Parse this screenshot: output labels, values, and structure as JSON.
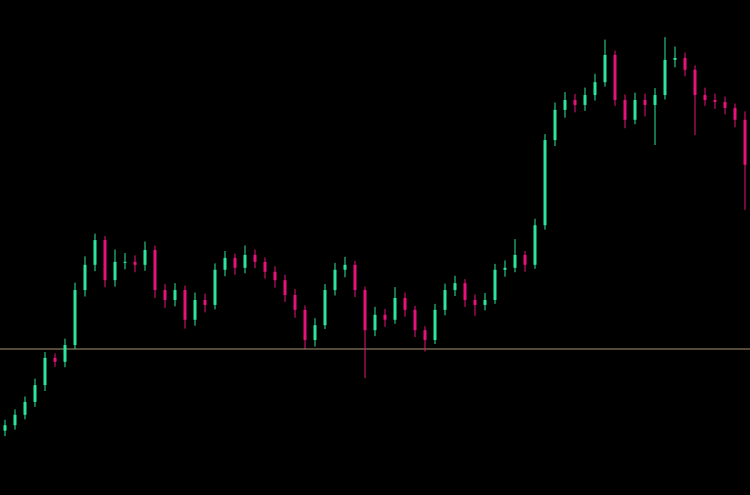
{
  "chart_data": {
    "type": "candlestick",
    "up_color": "#2ee59d",
    "down_color": "#e8127c",
    "background": "#000000",
    "ylim": [
      0,
      100
    ],
    "open": [
      13.0,
      14.1,
      16.2,
      18.8,
      22.2,
      27.7,
      26.9,
      30.3,
      41.4,
      46.5,
      51.5,
      43.4,
      47.1,
      47.1,
      46.5,
      49.5,
      41.4,
      39.4,
      41.4,
      35.4,
      39.4,
      38.4,
      45.5,
      47.9,
      45.9,
      48.5,
      47.1,
      45.1,
      43.4,
      40.4,
      37.4,
      31.3,
      34.3,
      41.4,
      45.5,
      46.5,
      41.4,
      33.3,
      36.4,
      35.4,
      39.8,
      37.4,
      33.3,
      31.3,
      37.4,
      41.4,
      42.8,
      39.4,
      38.4,
      39.4,
      45.5,
      45.9,
      48.5,
      46.5,
      54.5,
      71.7,
      77.8,
      79.8,
      78.8,
      80.8,
      83.4,
      88.9,
      79.8,
      75.8,
      79.8,
      78.8,
      80.8,
      87.9,
      88.3,
      85.9,
      80.8,
      79.8,
      79.4,
      78.2,
      75.8
    ],
    "high": [
      15.2,
      17.3,
      19.9,
      23.5,
      28.9,
      28.6,
      31.6,
      42.9,
      48.2,
      52.8,
      52.3,
      49.6,
      48.9,
      48.4,
      51.2,
      50.4,
      42.6,
      42.8,
      42.3,
      40.9,
      40.7,
      46.8,
      49.3,
      48.8,
      50.4,
      49.6,
      48.0,
      46.2,
      44.5,
      41.6,
      38.3,
      35.7,
      42.6,
      46.9,
      48.1,
      47.3,
      42.1,
      38.0,
      37.6,
      42.0,
      40.9,
      38.2,
      34.1,
      38.6,
      42.7,
      44.3,
      43.6,
      40.5,
      40.8,
      46.7,
      47.4,
      51.7,
      49.3,
      55.8,
      72.9,
      79.3,
      81.4,
      81.0,
      82.3,
      85.1,
      92.0,
      89.8,
      80.9,
      81.3,
      81.1,
      82.2,
      92.5,
      90.6,
      89.4,
      86.8,
      82.3,
      81.1,
      80.5,
      79.1,
      77.5
    ],
    "low": [
      11.9,
      13.2,
      15.3,
      17.8,
      21.0,
      25.9,
      25.8,
      29.4,
      40.1,
      45.2,
      42.0,
      42.1,
      45.6,
      45.0,
      45.3,
      39.8,
      37.8,
      38.1,
      33.6,
      34.2,
      36.9,
      37.5,
      44.2,
      44.5,
      44.8,
      45.8,
      43.7,
      41.9,
      39.0,
      35.8,
      29.6,
      30.0,
      33.5,
      40.3,
      44.0,
      40.0,
      23.6,
      32.1,
      34.0,
      34.6,
      36.0,
      31.9,
      29.0,
      30.5,
      36.3,
      40.2,
      38.0,
      36.2,
      37.3,
      38.6,
      44.1,
      45.0,
      45.1,
      45.7,
      53.6,
      70.5,
      76.2,
      77.3,
      77.6,
      79.7,
      82.5,
      78.6,
      74.1,
      74.9,
      76.5,
      70.7,
      79.9,
      86.4,
      84.6,
      72.7,
      78.6,
      78.0,
      76.9,
      74.3,
      57.6
    ],
    "close": [
      14.1,
      16.2,
      18.8,
      22.2,
      27.7,
      26.9,
      30.3,
      41.4,
      46.5,
      51.5,
      43.4,
      47.1,
      47.1,
      46.5,
      49.5,
      41.4,
      39.4,
      41.4,
      35.4,
      39.4,
      38.4,
      45.5,
      47.9,
      45.9,
      48.5,
      47.1,
      45.1,
      43.4,
      40.4,
      37.4,
      31.3,
      34.3,
      41.4,
      45.5,
      46.5,
      41.4,
      33.3,
      36.4,
      35.4,
      39.8,
      37.4,
      33.3,
      31.3,
      37.4,
      41.4,
      42.8,
      39.4,
      38.4,
      39.4,
      45.5,
      45.9,
      48.5,
      46.5,
      54.5,
      71.7,
      77.8,
      79.8,
      78.8,
      80.8,
      83.4,
      88.9,
      79.8,
      75.8,
      79.8,
      78.8,
      80.8,
      87.9,
      88.3,
      85.9,
      80.8,
      79.8,
      79.4,
      78.2,
      75.8,
      66.7
    ],
    "hline": {
      "value": 29.5,
      "color": "#a8946a"
    }
  }
}
